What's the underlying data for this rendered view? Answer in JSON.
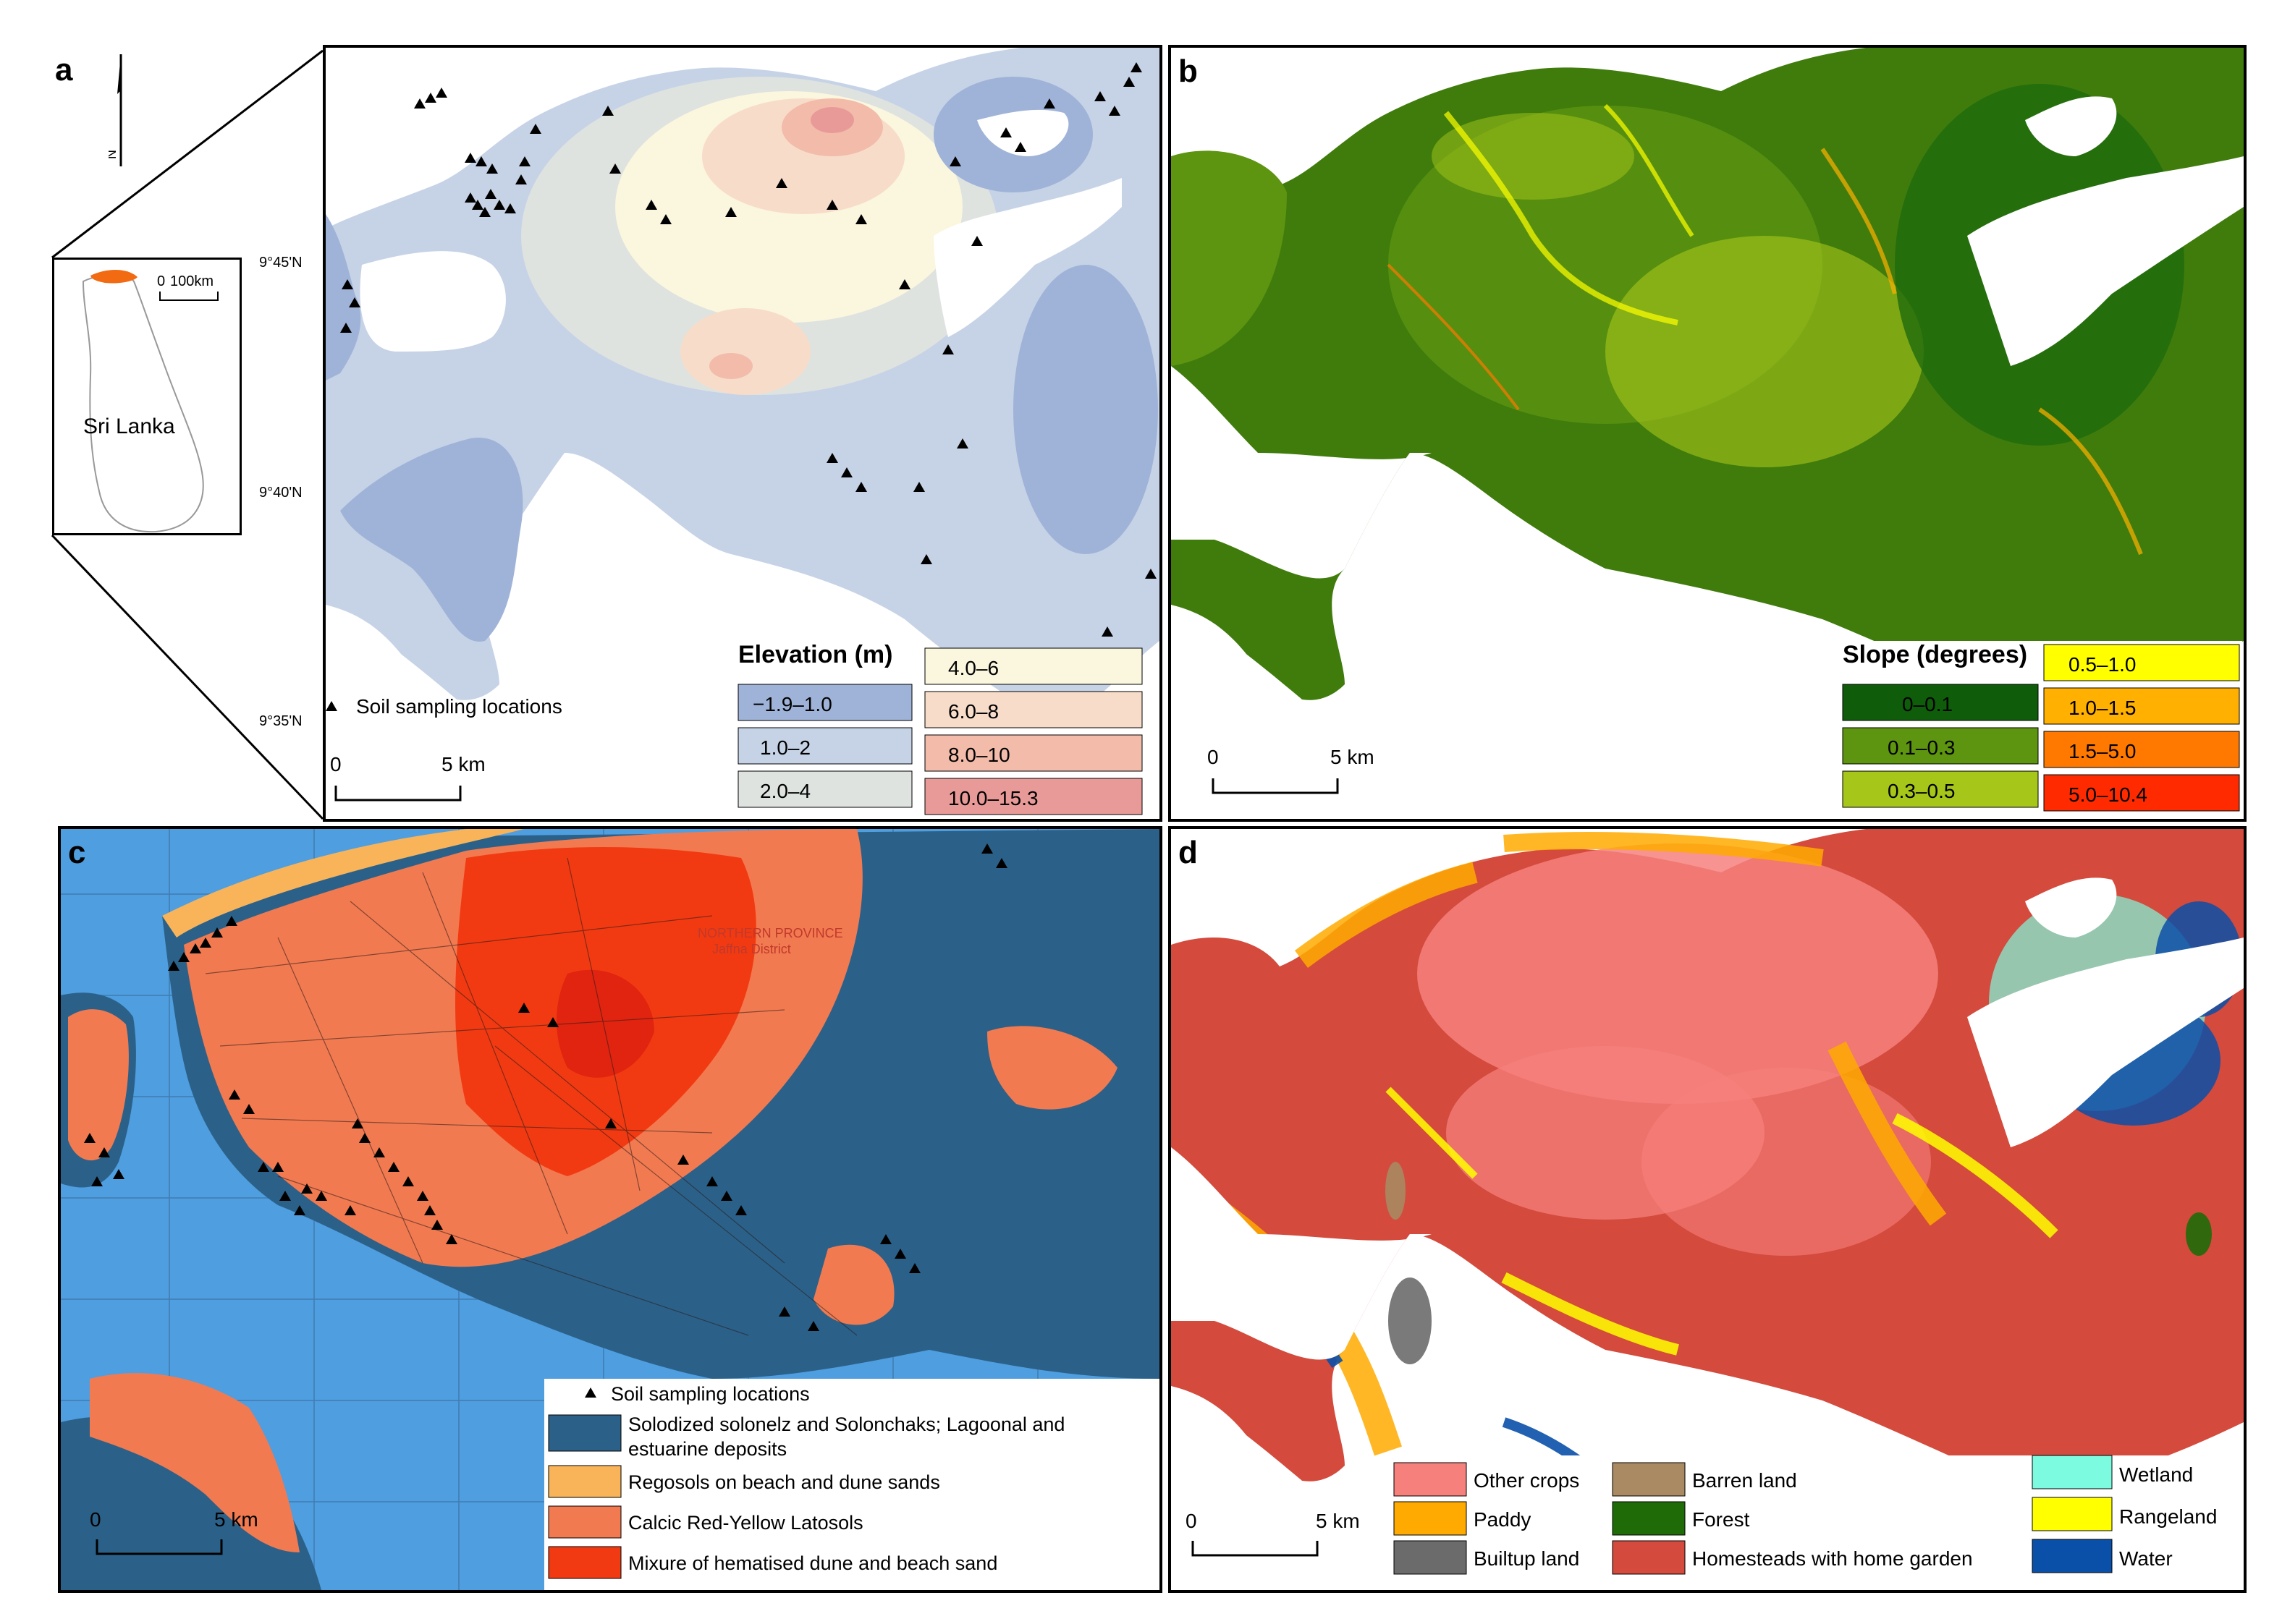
{
  "panels": {
    "a": {
      "letter": "a",
      "inset": {
        "country_label": "Sri Lanka",
        "scale_zero": "0",
        "scale_label": "100km",
        "north_label": "N"
      },
      "lat_labels": [
        "9°45'N",
        "9°40'N",
        "9°35'N"
      ],
      "scale_zero": "0",
      "scale_label": "5 km",
      "sampling_label": "Soil sampling locations",
      "legend_title": "Elevation (m)",
      "legend": [
        {
          "label": "−1.9–1.0",
          "color": "#9fb3d8"
        },
        {
          "label": "1.0–2",
          "color": "#c6d3e6"
        },
        {
          "label": "2.0–4",
          "color": "#dee3e0"
        },
        {
          "label": "4.0–6",
          "color": "#fbf6de"
        },
        {
          "label": "6.0–8",
          "color": "#f7dcc9"
        },
        {
          "label": "8.0–10",
          "color": "#f2bbaa"
        },
        {
          "label": "10.0–15.3",
          "color": "#e89a98"
        }
      ]
    },
    "b": {
      "letter": "b",
      "scale_zero": "0",
      "scale_label": "5 km",
      "legend_title": "Slope (degrees)",
      "legend": [
        {
          "label": "0–0.1",
          "color": "#0f5c0a"
        },
        {
          "label": "0.1–0.3",
          "color": "#5d9410"
        },
        {
          "label": "0.3–0.5",
          "color": "#a6c61a"
        },
        {
          "label": "0.5–1.0",
          "color": "#ffff00"
        },
        {
          "label": "1.0–1.5",
          "color": "#ffb000"
        },
        {
          "label": "1.5–5.0",
          "color": "#ff7800"
        },
        {
          "label": "5.0–10.4",
          "color": "#ff2a00"
        }
      ]
    },
    "c": {
      "letter": "c",
      "scale_zero": "0",
      "scale_label": "5 km",
      "map_labels": {
        "province": "NORTHERN PROVINCE",
        "district": "Jaffna District"
      },
      "sampling_label": "Soil sampling locations",
      "legend": [
        {
          "label": "Solodized solonelz and Solonchaks; Lagoonal and",
          "label2": "estuarine deposits",
          "color": "#2b6189"
        },
        {
          "label": "Regosols on beach and dune sands",
          "color": "#f9b45a"
        },
        {
          "label": "Calcic Red-Yellow Latosols",
          "color": "#f27a50"
        },
        {
          "label": "Mixure of hematised dune and beach sand",
          "color": "#f23a12"
        }
      ]
    },
    "d": {
      "letter": "d",
      "scale_zero": "0",
      "scale_label": "5 km",
      "legend": [
        {
          "label": "Other crops",
          "color": "#f6807c"
        },
        {
          "label": "Paddy",
          "color": "#ffaa00"
        },
        {
          "label": "Builtup land",
          "color": "#6b6b6b"
        },
        {
          "label": "Barren land",
          "color": "#a98a62"
        },
        {
          "label": "Forest",
          "color": "#1e6b08"
        },
        {
          "label": "Homesteads with home garden",
          "color": "#d44a3c"
        },
        {
          "label": "Wetland",
          "color": "#7dfbe0"
        },
        {
          "label": "Rangeland",
          "color": "#ffff00"
        },
        {
          "label": "Water",
          "color": "#0a4fa8"
        }
      ]
    }
  }
}
